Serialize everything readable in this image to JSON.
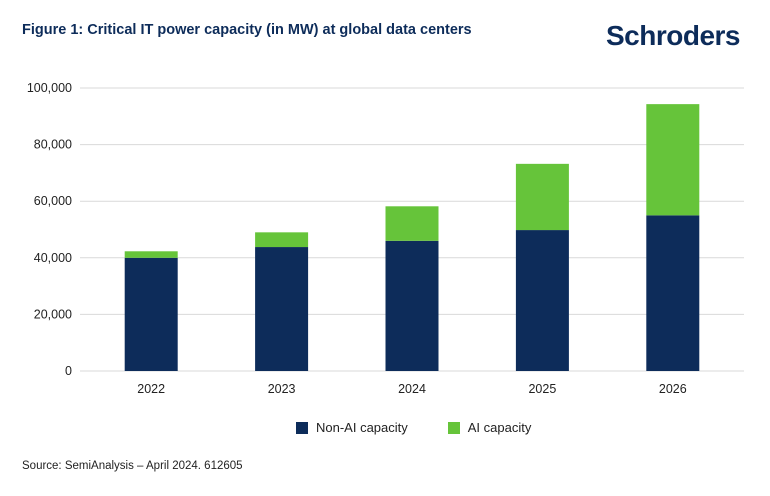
{
  "header": {
    "title": "Figure 1: Critical IT power capacity (in MW) at global data centers",
    "logo_text": "Schroders"
  },
  "footer": {
    "source": "Source: SemiAnalysis – April 2024. 612605"
  },
  "colors": {
    "non_ai": "#0d2c5a",
    "ai": "#66c43a",
    "grid": "#d9d9d9",
    "text": "#222222"
  },
  "chart_data": {
    "type": "bar",
    "stacked": true,
    "categories": [
      "2022",
      "2023",
      "2024",
      "2025",
      "2026"
    ],
    "series": [
      {
        "name": "Non-AI capacity",
        "values": [
          40000,
          43800,
          46000,
          49800,
          55000
        ]
      },
      {
        "name": "AI capacity",
        "values": [
          2300,
          5200,
          12200,
          23400,
          39300
        ]
      }
    ],
    "ylim": [
      0,
      100000
    ],
    "yticks": [
      "0",
      "20,000",
      "40,000",
      "60,000",
      "80,000",
      "100,000"
    ],
    "ytick_values": [
      0,
      20000,
      40000,
      60000,
      80000,
      100000
    ],
    "grid": true,
    "legend_position": "bottom"
  }
}
